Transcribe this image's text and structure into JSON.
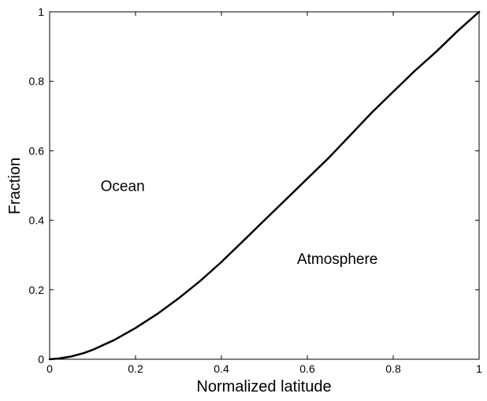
{
  "chart_data": {
    "type": "line",
    "title": "",
    "xlabel": "Normalized latitude",
    "ylabel": "Fraction",
    "xlim": [
      0,
      1
    ],
    "ylim": [
      0,
      1
    ],
    "grid": false,
    "xticks": [
      0,
      0.2,
      0.4,
      0.6,
      0.8,
      1
    ],
    "xtick_labels": [
      "0",
      "0.2",
      "0.4",
      "0.6",
      "0.8",
      "1"
    ],
    "yticks": [
      0,
      0.2,
      0.4,
      0.6,
      0.8,
      1
    ],
    "ytick_labels": [
      "0",
      "0.2",
      "0.4",
      "0.6",
      "0.8",
      "1"
    ],
    "series": [
      {
        "x": [
          0,
          0.02,
          0.05,
          0.08,
          0.1,
          0.15,
          0.2,
          0.25,
          0.3,
          0.35,
          0.4,
          0.45,
          0.5,
          0.55,
          0.6,
          0.65,
          0.7,
          0.75,
          0.8,
          0.85,
          0.9,
          0.95,
          1.0
        ],
        "y": [
          0,
          0.002,
          0.008,
          0.018,
          0.027,
          0.055,
          0.09,
          0.13,
          0.175,
          0.225,
          0.28,
          0.34,
          0.4,
          0.46,
          0.52,
          0.58,
          0.645,
          0.71,
          0.77,
          0.83,
          0.885,
          0.945,
          1.0
        ]
      }
    ],
    "annotations": [
      {
        "text": "Ocean",
        "x": 0.17,
        "y": 0.5
      },
      {
        "text": "Atmosphere",
        "x": 0.67,
        "y": 0.29
      }
    ]
  }
}
